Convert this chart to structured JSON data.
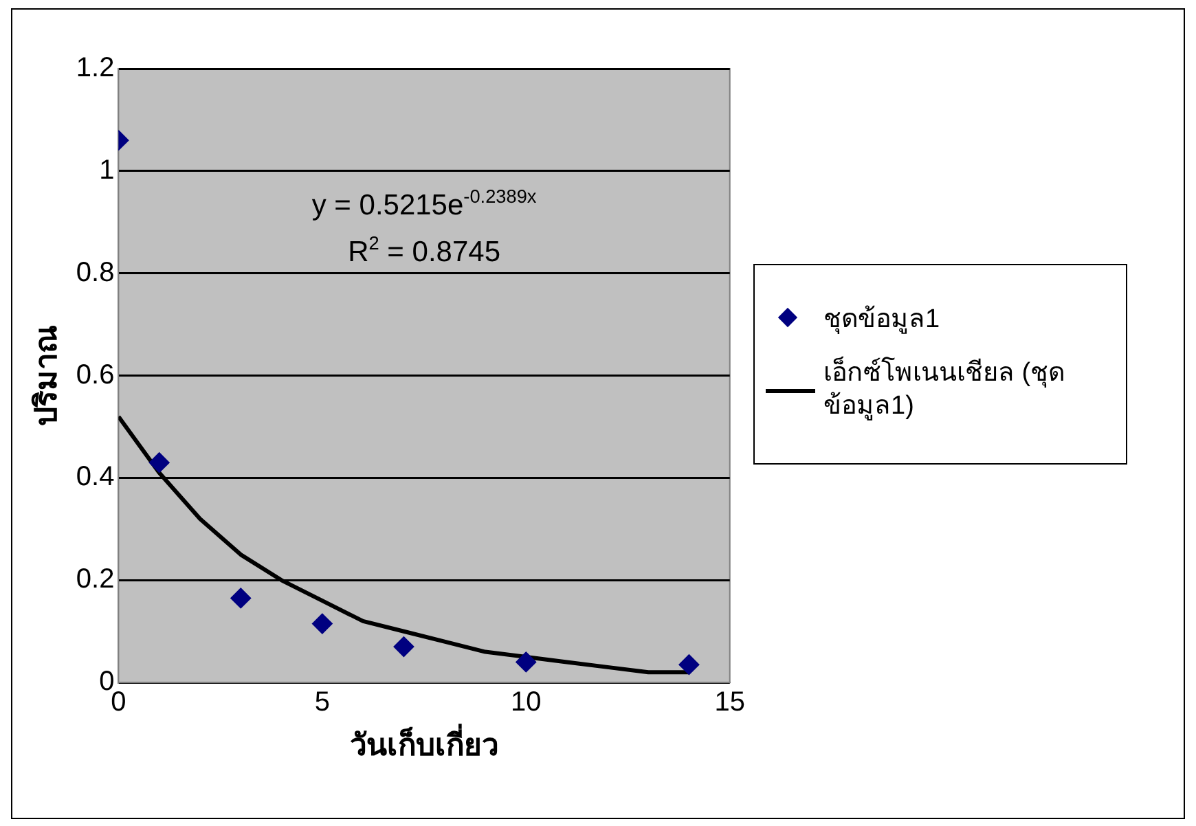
{
  "chart_data": {
    "type": "scatter",
    "xlabel": "วันเก็บเกี่ยว",
    "ylabel": "ปริมาณ",
    "xlim": [
      0,
      15
    ],
    "xticks": [
      0,
      5,
      10,
      15
    ],
    "ylim": [
      0,
      1.2
    ],
    "yticks": [
      0,
      {
        "value": 0.2,
        "label": "0.2"
      },
      {
        "value": 0.4,
        "label": "0.4"
      },
      {
        "value": 0.6,
        "label": "0.6"
      },
      {
        "value": 0.8,
        "label": "0.8"
      },
      1,
      {
        "value": 1.2,
        "label": "1.2"
      }
    ],
    "grid": "y",
    "legend": "right",
    "annotations": [
      "y = 0.5215e$^{-0.2389x}$",
      "R$^{2}$ = 0.8745"
    ],
    "series": [
      {
        "name": "ชุดข้อมูล1",
        "type": "scatter",
        "marker": "diamond",
        "color": "#000080",
        "x": [
          0,
          1,
          3,
          5,
          7,
          10,
          14
        ],
        "values": [
          1.06,
          0.43,
          0.165,
          0.115,
          0.07,
          0.04,
          0.035
        ]
      },
      {
        "name": "เอ็กซ์โพเนนเชียล (ชุดข้อมูล1)",
        "type": "line",
        "marker": "none",
        "color": "#000000",
        "x": [
          0,
          1,
          2,
          3,
          4,
          5,
          6,
          7,
          8,
          9,
          10,
          11,
          12,
          13,
          14
        ],
        "values": [
          0.52,
          0.41,
          0.32,
          0.25,
          0.2,
          0.16,
          0.12,
          0.1,
          0.08,
          0.06,
          0.05,
          0.04,
          0.03,
          0.02,
          0.02
        ]
      }
    ]
  }
}
